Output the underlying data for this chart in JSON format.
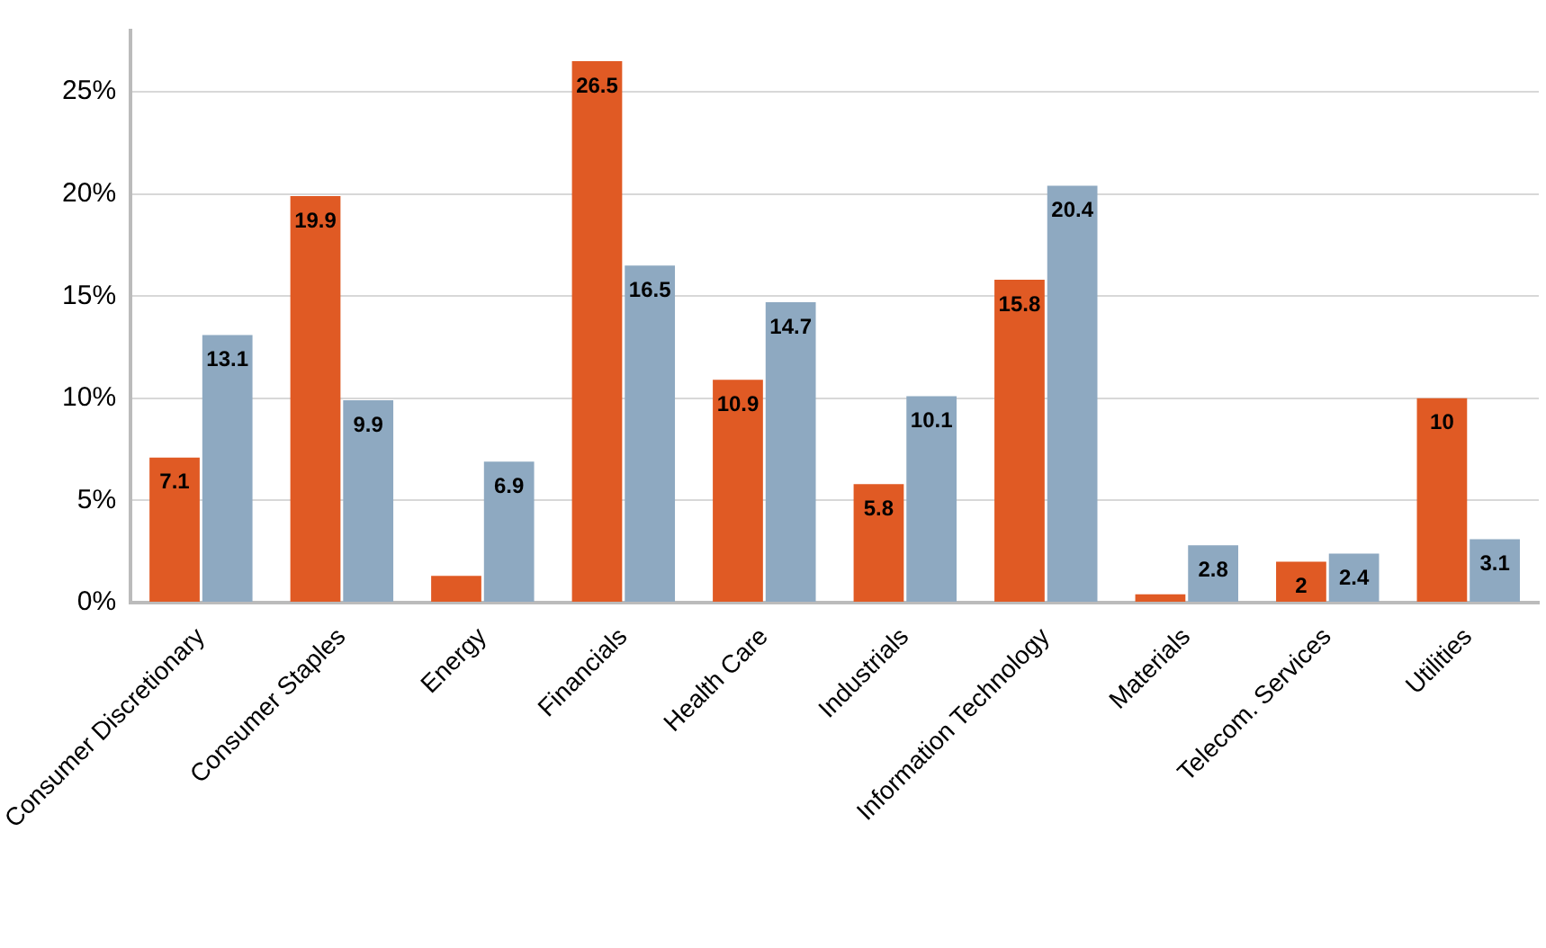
{
  "chart_data": {
    "type": "bar",
    "categories": [
      "Consumer Discretionary",
      "Consumer Staples",
      "Energy",
      "Financials",
      "Health Care",
      "Industrials",
      "Information Technology",
      "Materials",
      "Telecom. Services",
      "Utilities"
    ],
    "series": [
      {
        "color": "#e05a24",
        "values": [
          7.1,
          19.9,
          1.3,
          26.5,
          10.9,
          5.8,
          15.8,
          0.4,
          2,
          10
        ],
        "value_labels": [
          "7.1",
          "19.9",
          null,
          "26.5",
          "10.9",
          "5.8",
          "15.8",
          null,
          "2",
          "10"
        ]
      },
      {
        "color": "#8ea9c1",
        "values": [
          13.1,
          9.9,
          6.9,
          16.5,
          14.7,
          10.1,
          20.4,
          2.8,
          2.4,
          3.1
        ],
        "value_labels": [
          "13.1",
          "9.9",
          "6.9",
          "16.5",
          "14.7",
          "10.1",
          "20.4",
          "2.8",
          "2.4",
          "3.1"
        ]
      }
    ],
    "ylim": [
      0,
      28
    ],
    "yticks": [
      {
        "value": 0,
        "label": "0%"
      },
      {
        "value": 5,
        "label": "5%"
      },
      {
        "value": 10,
        "label": "10%"
      },
      {
        "value": 15,
        "label": "15%"
      },
      {
        "value": 20,
        "label": "20%"
      },
      {
        "value": 25,
        "label": "25%"
      }
    ],
    "grid": "y",
    "legend": false
  }
}
